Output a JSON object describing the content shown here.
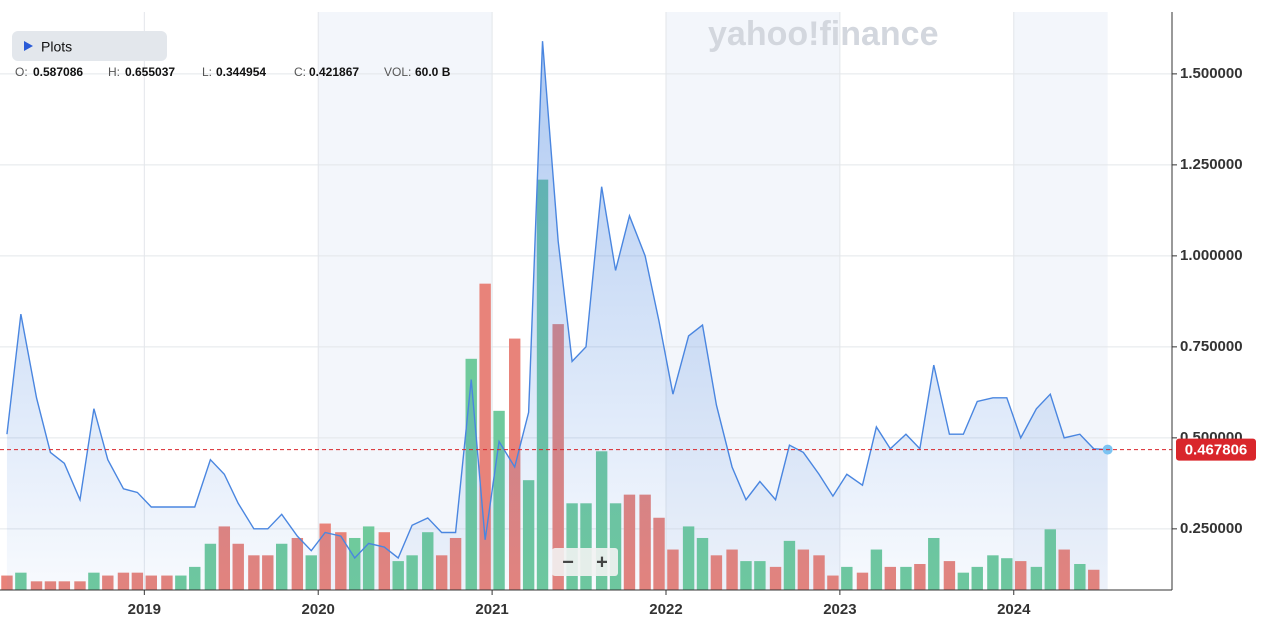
{
  "header": {
    "plots_button": "Plots",
    "ohlc": {
      "open_label": "O:",
      "open": "0.587086",
      "high_label": "H:",
      "high": "0.655037",
      "low_label": "L:",
      "low": "0.344954",
      "close_label": "C:",
      "close": "0.421867",
      "volume_label": "VOL:",
      "volume": "60.0 B"
    },
    "watermark": "yahoo!finance",
    "zoom_out": "−",
    "zoom_in": "+"
  },
  "chart_data": {
    "type": "line",
    "x": [
      2018.21,
      2018.29,
      2018.38,
      2018.46,
      2018.54,
      2018.63,
      2018.71,
      2018.79,
      2018.88,
      2018.96,
      2019.04,
      2019.13,
      2019.21,
      2019.29,
      2019.38,
      2019.46,
      2019.54,
      2019.63,
      2019.71,
      2019.79,
      2019.88,
      2019.96,
      2020.04,
      2020.13,
      2020.21,
      2020.29,
      2020.38,
      2020.46,
      2020.54,
      2020.63,
      2020.71,
      2020.79,
      2020.88,
      2020.96,
      2021.04,
      2021.13,
      2021.21,
      2021.29,
      2021.38,
      2021.46,
      2021.54,
      2021.63,
      2021.71,
      2021.79,
      2021.88,
      2021.96,
      2022.04,
      2022.13,
      2022.21,
      2022.29,
      2022.38,
      2022.46,
      2022.54,
      2022.63,
      2022.71,
      2022.79,
      2022.88,
      2022.96,
      2023.04,
      2023.13,
      2023.21,
      2023.29,
      2023.38,
      2023.46,
      2023.54,
      2023.63,
      2023.71,
      2023.79,
      2023.88,
      2023.96,
      2024.04,
      2024.13,
      2024.21,
      2024.29,
      2024.38,
      2024.46,
      2024.54
    ],
    "series": [
      {
        "color": "#4a86e0",
        "values": [
          0.51,
          0.84,
          0.61,
          0.46,
          0.43,
          0.33,
          0.58,
          0.44,
          0.36,
          0.35,
          0.31,
          0.31,
          0.31,
          0.31,
          0.44,
          0.4,
          0.32,
          0.25,
          0.25,
          0.29,
          0.23,
          0.19,
          0.24,
          0.23,
          0.17,
          0.21,
          0.2,
          0.17,
          0.26,
          0.28,
          0.24,
          0.24,
          0.66,
          0.22,
          0.49,
          0.42,
          0.57,
          1.59,
          1.04,
          0.71,
          0.75,
          1.19,
          0.96,
          1.11,
          1.0,
          0.82,
          0.62,
          0.78,
          0.81,
          0.59,
          0.42,
          0.33,
          0.38,
          0.33,
          0.48,
          0.46,
          0.4,
          0.34,
          0.4,
          0.37,
          0.53,
          0.47,
          0.51,
          0.47,
          0.7,
          0.51,
          0.51,
          0.6,
          0.61,
          0.61,
          0.5,
          0.58,
          0.62,
          0.5,
          0.51,
          0.47,
          0.467806
        ]
      },
      {
        "axis": "y2",
        "values": [
          5,
          6,
          3,
          3,
          3,
          3,
          6,
          5,
          6,
          6,
          5,
          5,
          5,
          8,
          16,
          22,
          16,
          12,
          12,
          16,
          18,
          12,
          23,
          20,
          18,
          22,
          20,
          10,
          12,
          20,
          12,
          18,
          80,
          106,
          62,
          87,
          38,
          142,
          92,
          30,
          30,
          48,
          30,
          33,
          33,
          25,
          14,
          22,
          18,
          12,
          14,
          10,
          10,
          8,
          17,
          14,
          12,
          5,
          8,
          6,
          14,
          8,
          8,
          9,
          18,
          10,
          6,
          8,
          12,
          11,
          10,
          8,
          21,
          14,
          9,
          7,
          null
        ],
        "colors": [
          "#e8837a",
          "#6fca9c",
          "#e8837a",
          "#e8837a",
          "#e8837a",
          "#e8837a",
          "#6fca9c",
          "#e8837a",
          "#e8837a",
          "#e8837a",
          "#e8837a",
          "#e8837a",
          "#6fca9c",
          "#6fca9c",
          "#6fca9c",
          "#e8837a",
          "#e8837a",
          "#e8837a",
          "#e8837a",
          "#6fca9c",
          "#e8837a",
          "#6fca9c",
          "#e8837a",
          "#e8837a",
          "#6fca9c",
          "#6fca9c",
          "#e8837a",
          "#6fca9c",
          "#6fca9c",
          "#6fca9c",
          "#e8837a",
          "#e8837a",
          "#6fca9c",
          "#e8837a",
          "#6fca9c",
          "#e8837a",
          "#6fca9c",
          "#6fca9c",
          "#e8837a",
          "#6fca9c",
          "#6fca9c",
          "#6fca9c",
          "#6fca9c",
          "#e8837a",
          "#e8837a",
          "#e8837a",
          "#e8837a",
          "#6fca9c",
          "#6fca9c",
          "#e8837a",
          "#e8837a",
          "#6fca9c",
          "#6fca9c",
          "#e8837a",
          "#6fca9c",
          "#e8837a",
          "#e8837a",
          "#e8837a",
          "#6fca9c",
          "#e8837a",
          "#6fca9c",
          "#e8837a",
          "#6fca9c",
          "#e8837a",
          "#6fca9c",
          "#e8837a",
          "#6fca9c",
          "#6fca9c",
          "#6fca9c",
          "#6fca9c",
          "#e8837a",
          "#6fca9c",
          "#6fca9c",
          "#e8837a",
          "#6fca9c",
          "#e8837a",
          null
        ]
      }
    ],
    "xlim": [
      2018.17,
      2024.91
    ],
    "xticks": [
      2019,
      2020,
      2021,
      2022,
      2023,
      2024
    ],
    "ylim": [
      0.082,
      1.67
    ],
    "yticks": [
      {
        "value": 0.25,
        "label": "0.250000"
      },
      {
        "value": 0.5,
        "label": "0.500000"
      },
      {
        "value": 0.75,
        "label": "0.750000"
      },
      {
        "value": 1.0,
        "label": "1.000000"
      },
      {
        "value": 1.25,
        "label": "1.250000"
      },
      {
        "value": 1.5,
        "label": "1.500000"
      }
    ],
    "y2lim": [
      0,
      200
    ],
    "last_price": 0.467806,
    "last_price_color": "#d9262b",
    "grid": true
  }
}
